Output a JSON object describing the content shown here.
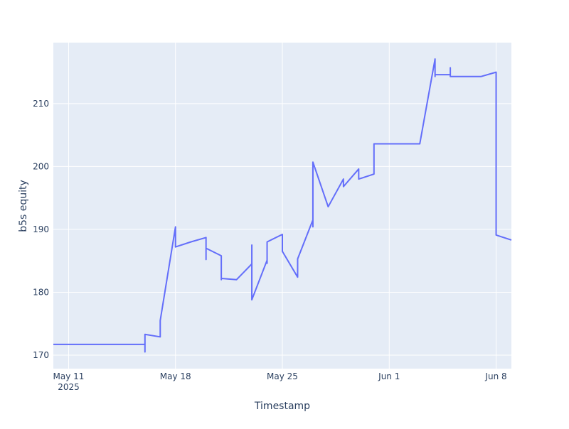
{
  "chart_data": {
    "type": "line",
    "x_label": "Timestamp",
    "y_label": "b5s equity",
    "x": [
      "2025-05-10",
      "2025-05-16",
      "2025-05-16",
      "2025-05-16",
      "2025-05-17",
      "2025-05-17",
      "2025-05-18",
      "2025-05-18",
      "2025-05-18",
      "2025-05-19",
      "2025-05-20",
      "2025-05-20",
      "2025-05-20",
      "2025-05-21",
      "2025-05-21",
      "2025-05-21",
      "2025-05-22",
      "2025-05-23",
      "2025-05-23",
      "2025-05-23",
      "2025-05-24",
      "2025-05-24",
      "2025-05-24",
      "2025-05-25",
      "2025-05-25",
      "2025-05-26",
      "2025-05-26",
      "2025-05-27",
      "2025-05-27",
      "2025-05-27",
      "2025-05-28",
      "2025-05-29",
      "2025-05-29",
      "2025-05-30",
      "2025-05-30",
      "2025-05-30",
      "2025-05-31",
      "2025-05-31",
      "2025-05-31",
      "2025-05-31",
      "2025-06-03",
      "2025-06-04",
      "2025-06-04",
      "2025-06-04",
      "2025-06-04",
      "2025-06-04",
      "2025-06-05",
      "2025-06-05",
      "2025-06-05",
      "2025-06-07",
      "2025-06-08",
      "2025-06-08",
      "2025-06-08",
      "2025-06-08",
      "2025-06-08",
      "2025-06-09"
    ],
    "series": [
      {
        "name": "b5s equity",
        "color": "#636efa",
        "values": [
          171.7,
          171.7,
          170.5,
          173.3,
          172.9,
          175.5,
          190.4,
          189.4,
          187.2,
          188.0,
          188.7,
          185.2,
          187.0,
          185.8,
          182.0,
          182.2,
          182.0,
          184.5,
          187.5,
          178.8,
          185.1,
          184.6,
          188.0,
          189.2,
          186.5,
          182.4,
          185.3,
          191.5,
          190.4,
          200.7,
          193.6,
          198.0,
          196.8,
          199.6,
          199.2,
          198.0,
          198.8,
          203.2,
          202.9,
          203.6,
          203.6,
          217.1,
          215.6,
          215.9,
          214.3,
          214.6,
          214.6,
          215.7,
          214.3,
          214.3,
          215.0,
          196.0,
          193.0,
          192.7,
          189.1,
          188.3
        ]
      }
    ],
    "xlim": [
      "2025-05-10",
      "2025-06-09"
    ],
    "xticks": [
      {
        "value": "2025-05-11",
        "label": "May 11\n2025"
      },
      {
        "value": "2025-05-18",
        "label": "May 18"
      },
      {
        "value": "2025-05-25",
        "label": "May 25"
      },
      {
        "value": "2025-06-01",
        "label": "Jun 1"
      },
      {
        "value": "2025-06-08",
        "label": "Jun 8"
      }
    ],
    "ylim": [
      167.85,
      219.7
    ],
    "yticks": [
      170,
      180,
      190,
      200,
      210
    ],
    "grid": true
  }
}
